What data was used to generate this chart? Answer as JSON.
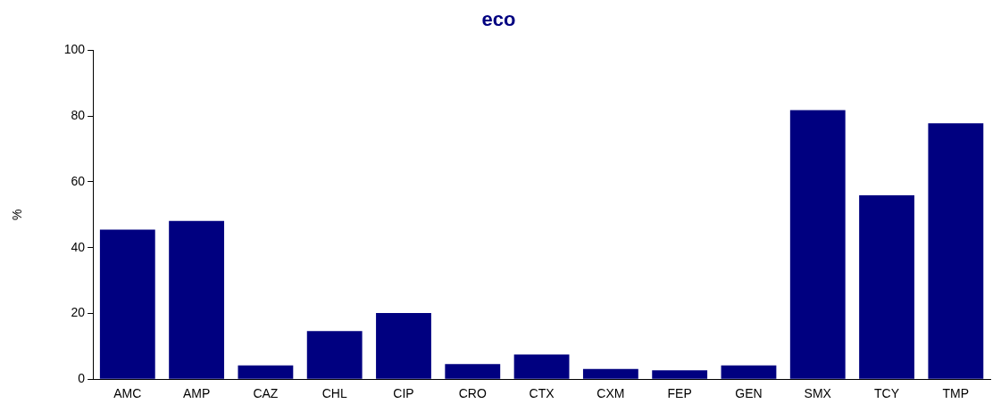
{
  "chart_data": {
    "type": "bar",
    "title": "eco",
    "ylabel": "%",
    "categories": [
      "AMC",
      "AMP",
      "CAZ",
      "CHL",
      "CIP",
      "CRO",
      "CTX",
      "CXM",
      "FEP",
      "GEN",
      "SMX",
      "TCY",
      "TMP"
    ],
    "values": [
      45.5,
      48.1,
      4.2,
      14.6,
      20.1,
      4.6,
      7.5,
      3.1,
      2.7,
      4.2,
      81.8,
      55.9,
      77.8
    ],
    "color": "#000080",
    "ylim": [
      0,
      100
    ],
    "yticks": [
      0,
      20,
      40,
      60,
      80,
      100
    ],
    "grid": false,
    "legend": false
  }
}
